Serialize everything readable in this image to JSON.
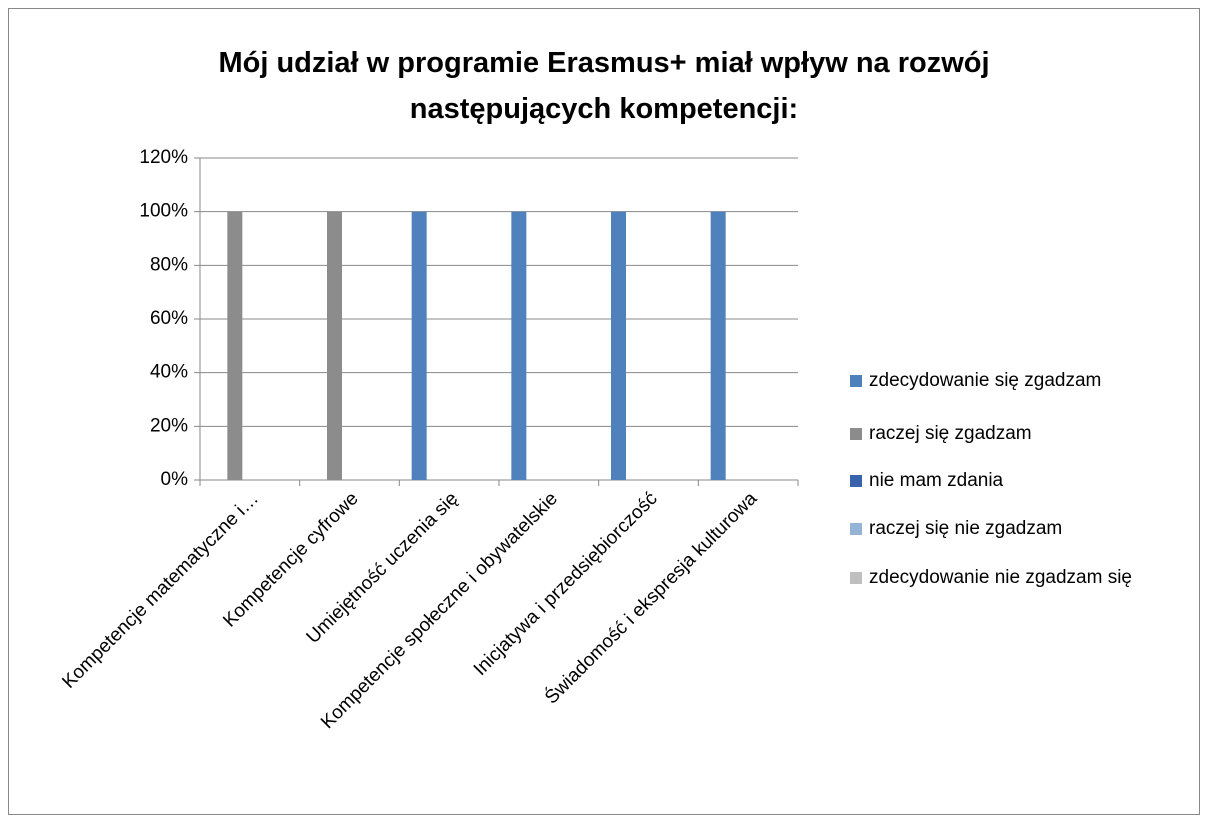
{
  "chart_data": {
    "type": "bar",
    "title": "Mój udział w programie Erasmus+ miał wpływ na rozwój następujących kompetencji:",
    "categories": [
      "Kompetencje matematyczne i…",
      "Kompetencje cyfrowe",
      "Umiejętność uczenia się",
      "Kompetencje społeczne i obywatelskie",
      "Inicjatywa i przedsiębiorczość",
      "Świadomość i ekspresja kulturowa"
    ],
    "series": [
      {
        "name": "zdecydowanie się zgadzam",
        "color": "#4f81bd",
        "values": [
          0,
          0,
          100,
          100,
          100,
          100
        ]
      },
      {
        "name": "raczej się zgadzam",
        "color": "#8c8c8c",
        "values": [
          100,
          100,
          0,
          0,
          0,
          0
        ]
      },
      {
        "name": "nie mam zdania",
        "color": "#3a63ad",
        "values": [
          0,
          0,
          0,
          0,
          0,
          0
        ]
      },
      {
        "name": "raczej się nie zgadzam",
        "color": "#95b3d7",
        "values": [
          0,
          0,
          0,
          0,
          0,
          0
        ]
      },
      {
        "name": "zdecydowanie nie zgadzam się",
        "color": "#bfbfbf",
        "values": [
          0,
          0,
          0,
          0,
          0,
          0
        ]
      }
    ],
    "ylim": [
      0,
      120
    ],
    "yticks": [
      {
        "value": 0,
        "label": "0%"
      },
      {
        "value": 20,
        "label": "20%"
      },
      {
        "value": 40,
        "label": "40%"
      },
      {
        "value": 60,
        "label": "60%"
      },
      {
        "value": 80,
        "label": "80%"
      },
      {
        "value": 100,
        "label": "100%"
      },
      {
        "value": 120,
        "label": "120%"
      }
    ],
    "grid": true,
    "legend": "right"
  }
}
